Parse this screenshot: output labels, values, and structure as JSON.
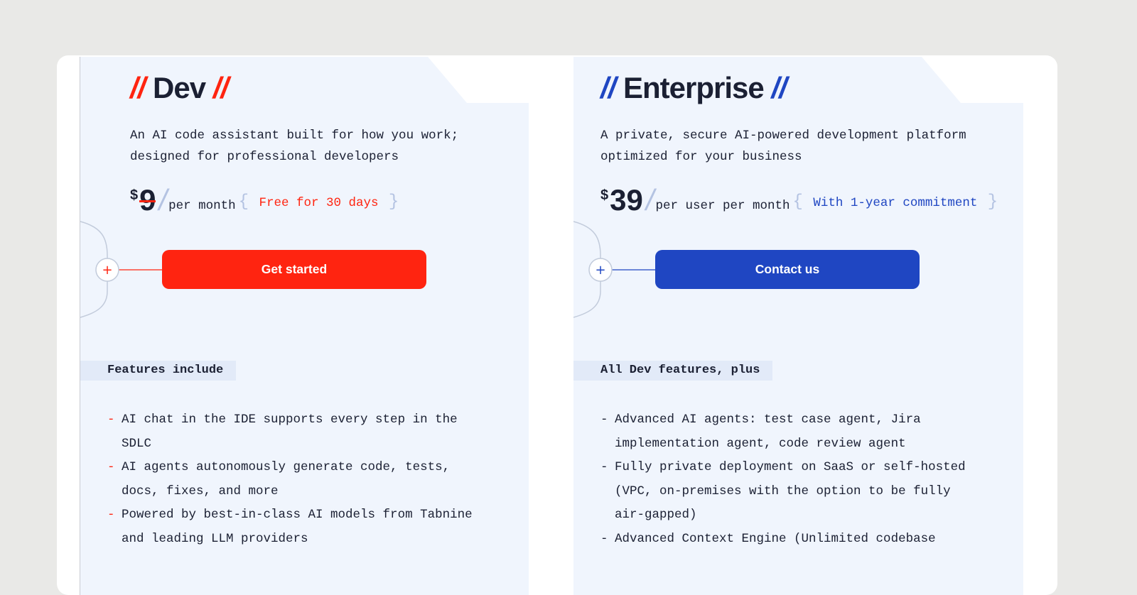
{
  "colors": {
    "dev_accent": "#ff2410",
    "enterprise_accent": "#1f46c2",
    "panel_bg": "#f0f5fd"
  },
  "plans": [
    {
      "icon": "laptop-code-icon",
      "slashes": "//",
      "name": "Dev",
      "description": "An AI code assistant built for how you work; designed for professional developers",
      "currency": "$",
      "price": "9",
      "price_struck": true,
      "period": "per month",
      "note": "Free for 30 days",
      "cta": "Get started",
      "features_heading": "Features include",
      "features": [
        "AI chat in the IDE supports every step in the SDLC",
        "AI agents autonomously generate code, tests, docs, fixes, and more",
        "Powered by best-in-class AI models from Tabnine and leading LLM providers"
      ]
    },
    {
      "icon": "building-icon",
      "slashes": "//",
      "name": "Enterprise",
      "description": "A private, secure AI-powered development platform optimized for your business",
      "currency": "$",
      "price": "39",
      "price_struck": false,
      "period": "per user per month",
      "note": "With 1-year commitment",
      "cta": "Contact us",
      "features_heading": "All Dev features, plus",
      "features": [
        "Advanced AI agents: test case agent, Jira implementation agent, code review agent",
        "Fully private deployment on SaaS or self-hosted (VPC, on-premises with the option to be fully air-gapped)",
        "Advanced Context Engine (Unlimited codebase"
      ]
    }
  ]
}
